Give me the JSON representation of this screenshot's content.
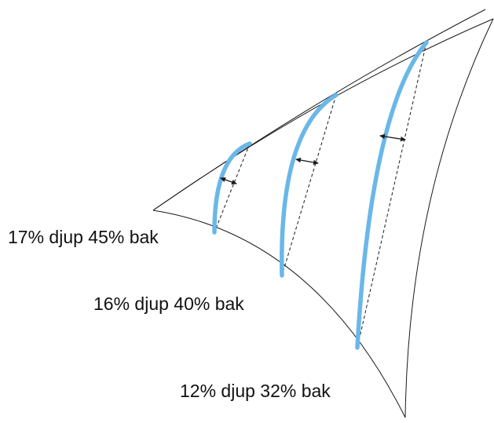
{
  "colors": {
    "profile": "#6ab7e8",
    "outline": "#1a1a1a",
    "background": "#ffffff"
  },
  "sections": [
    {
      "label": "17% djup 45% bak",
      "depth_percent": 17,
      "draft_position_percent": 45
    },
    {
      "label": "16% djup 40% bak",
      "depth_percent": 16,
      "draft_position_percent": 40
    },
    {
      "label": "12% djup 32% bak",
      "depth_percent": 12,
      "draft_position_percent": 32
    }
  ]
}
